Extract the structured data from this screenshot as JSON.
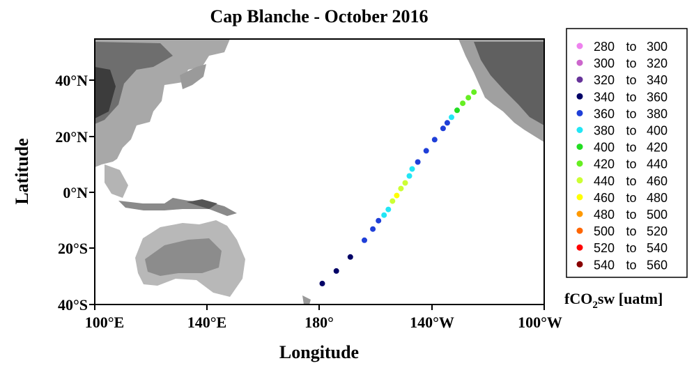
{
  "title": "Cap Blanche - October 2016",
  "axes": {
    "xlabel": "Longitude",
    "ylabel": "Latitude",
    "x_ticks": [
      "100°E",
      "140°E",
      "180°",
      "140°W",
      "100°W"
    ],
    "y_ticks": [
      "40°N",
      "20°N",
      "0°N",
      "20°S",
      "40°S"
    ]
  },
  "legend": {
    "title_main": "fCO",
    "title_sub": "2",
    "title_rest": "sw [uatm]",
    "items": [
      {
        "from": "280",
        "sep": "to",
        "to": "300",
        "color": "#ee82ee"
      },
      {
        "from": "300",
        "sep": "to",
        "to": "320",
        "color": "#cc66cc"
      },
      {
        "from": "320",
        "sep": "to",
        "to": "340",
        "color": "#663399"
      },
      {
        "from": "340",
        "sep": "to",
        "to": "360",
        "color": "#000066"
      },
      {
        "from": "360",
        "sep": "to",
        "to": "380",
        "color": "#1f3fd8"
      },
      {
        "from": "380",
        "sep": "to",
        "to": "400",
        "color": "#22e6f5"
      },
      {
        "from": "400",
        "sep": "to",
        "to": "420",
        "color": "#22dd22"
      },
      {
        "from": "420",
        "sep": "to",
        "to": "440",
        "color": "#66ee22"
      },
      {
        "from": "440",
        "sep": "to",
        "to": "460",
        "color": "#ccff33"
      },
      {
        "from": "460",
        "sep": "to",
        "to": "480",
        "color": "#ffff00"
      },
      {
        "from": "480",
        "sep": "to",
        "to": "500",
        "color": "#ff9900"
      },
      {
        "from": "500",
        "sep": "to",
        "to": "520",
        "color": "#ff6600"
      },
      {
        "from": "520",
        "sep": "to",
        "to": "540",
        "color": "#ff0000"
      },
      {
        "from": "540",
        "sep": "to",
        "to": "560",
        "color": "#880000"
      }
    ]
  },
  "chart_data": {
    "type": "scatter",
    "xlim": [
      100,
      260
    ],
    "ylim": [
      -40,
      55
    ],
    "x_units": "longitude degrees east (180° = 180, 140°W = 220)",
    "track": [
      {
        "lon": 181,
        "lat": -32.5,
        "fco2": 345
      },
      {
        "lon": 186,
        "lat": -28,
        "fco2": 350
      },
      {
        "lon": 191,
        "lat": -23,
        "fco2": 352
      },
      {
        "lon": 196,
        "lat": -17,
        "fco2": 365
      },
      {
        "lon": 199,
        "lat": -13,
        "fco2": 372
      },
      {
        "lon": 201,
        "lat": -10,
        "fco2": 375
      },
      {
        "lon": 203,
        "lat": -8,
        "fco2": 385
      },
      {
        "lon": 204.5,
        "lat": -6,
        "fco2": 392
      },
      {
        "lon": 206,
        "lat": -3,
        "fco2": 440
      },
      {
        "lon": 207.5,
        "lat": -1,
        "fco2": 465
      },
      {
        "lon": 209,
        "lat": 1.5,
        "fco2": 455
      },
      {
        "lon": 210.5,
        "lat": 3.5,
        "fco2": 445
      },
      {
        "lon": 212,
        "lat": 6,
        "fco2": 395
      },
      {
        "lon": 213,
        "lat": 8.5,
        "fco2": 385
      },
      {
        "lon": 215,
        "lat": 11,
        "fco2": 370
      },
      {
        "lon": 218,
        "lat": 15,
        "fco2": 368
      },
      {
        "lon": 221,
        "lat": 19,
        "fco2": 368
      },
      {
        "lon": 224,
        "lat": 23,
        "fco2": 365
      },
      {
        "lon": 225.5,
        "lat": 25,
        "fco2": 362
      },
      {
        "lon": 227,
        "lat": 27,
        "fco2": 390
      },
      {
        "lon": 229,
        "lat": 29.5,
        "fco2": 410
      },
      {
        "lon": 231,
        "lat": 32,
        "fco2": 425
      },
      {
        "lon": 233,
        "lat": 34,
        "fco2": 425
      },
      {
        "lon": 235,
        "lat": 36,
        "fco2": 430
      }
    ]
  }
}
